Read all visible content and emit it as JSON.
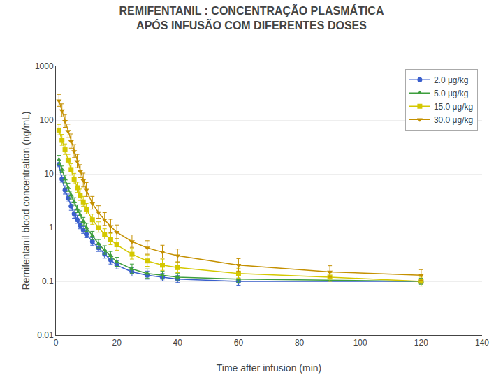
{
  "chart_data": {
    "type": "line",
    "title": "REMIFENTANIL : CONCENTRAÇÃO PLASMÁTICA",
    "subtitle": "APÓS INFUSÃO COM DIFERENTES DOSES",
    "x_label": "Time after infusion (min)",
    "y_label": "Remifentanil blood concentration (ng/mL)",
    "log": "y",
    "grid": true,
    "legend": "upper right",
    "xlim": [
      0,
      140
    ],
    "xticks": [
      0,
      20,
      40,
      60,
      80,
      100,
      120,
      140
    ],
    "ylim": [
      0.01,
      1000
    ],
    "yticks": [
      0.01,
      0.1,
      1,
      10,
      100,
      1000
    ],
    "series": [
      {
        "name": "2.0 μg/kg",
        "color": "#3a5fcd",
        "marker": "circle",
        "x": [
          1,
          2,
          3,
          4,
          5,
          6,
          7,
          8,
          9,
          10,
          12,
          14,
          16,
          18,
          20,
          25,
          30,
          35,
          40,
          60,
          120
        ],
        "values": [
          15,
          8,
          5,
          3.5,
          2.5,
          1.8,
          1.4,
          1.1,
          0.9,
          0.75,
          0.55,
          0.42,
          0.32,
          0.25,
          0.2,
          0.15,
          0.13,
          0.12,
          0.11,
          0.1,
          0.1
        ],
        "err_lo": [
          2,
          1,
          0.8,
          0.5,
          0.4,
          0.3,
          0.2,
          0.15,
          0.12,
          0.1,
          0.08,
          0.06,
          0.05,
          0.04,
          0.03,
          0.025,
          0.02,
          0.018,
          0.015,
          0.015,
          0.01
        ],
        "err_hi": [
          3,
          1.5,
          1,
          0.7,
          0.5,
          0.4,
          0.3,
          0.2,
          0.15,
          0.12,
          0.1,
          0.08,
          0.06,
          0.05,
          0.04,
          0.03,
          0.025,
          0.02,
          0.018,
          0.015,
          0.012
        ]
      },
      {
        "name": "5.0 μg/kg",
        "color": "#3d9e3d",
        "marker": "triangle-up",
        "x": [
          1,
          2,
          3,
          4,
          5,
          6,
          7,
          8,
          9,
          10,
          12,
          14,
          16,
          18,
          20,
          25,
          30,
          35,
          40,
          60,
          120
        ],
        "values": [
          18,
          12,
          8,
          5.5,
          4,
          3,
          2.2,
          1.7,
          1.3,
          1.0,
          0.7,
          0.5,
          0.38,
          0.3,
          0.23,
          0.17,
          0.14,
          0.13,
          0.12,
          0.11,
          0.1
        ],
        "err_lo": [
          3,
          1.5,
          1.2,
          0.8,
          0.6,
          0.4,
          0.3,
          0.25,
          0.2,
          0.15,
          0.1,
          0.08,
          0.06,
          0.05,
          0.04,
          0.03,
          0.025,
          0.02,
          0.018,
          0.015,
          0.012
        ],
        "err_hi": [
          4,
          2,
          1.5,
          1.2,
          0.8,
          0.6,
          0.45,
          0.35,
          0.25,
          0.2,
          0.15,
          0.1,
          0.08,
          0.06,
          0.05,
          0.04,
          0.03,
          0.025,
          0.02,
          0.018,
          0.014
        ]
      },
      {
        "name": "15.0 μg/kg",
        "color": "#d4c800",
        "marker": "square",
        "x": [
          1,
          2,
          3,
          4,
          5,
          6,
          7,
          8,
          9,
          10,
          12,
          14,
          16,
          18,
          20,
          25,
          30,
          35,
          40,
          60,
          90,
          120
        ],
        "values": [
          65,
          42,
          28,
          18,
          12,
          8,
          5.5,
          4,
          3,
          2.2,
          1.4,
          1.0,
          0.75,
          0.6,
          0.48,
          0.32,
          0.24,
          0.2,
          0.18,
          0.14,
          0.12,
          0.1
        ],
        "err_lo": [
          12,
          8,
          5,
          3.5,
          2.5,
          1.5,
          1,
          0.8,
          0.5,
          0.4,
          0.25,
          0.18,
          0.14,
          0.12,
          0.1,
          0.06,
          0.05,
          0.04,
          0.035,
          0.025,
          0.02,
          0.018
        ],
        "err_hi": [
          18,
          12,
          8,
          5,
          3.5,
          2.2,
          1.5,
          1.2,
          0.8,
          0.6,
          0.38,
          0.28,
          0.2,
          0.18,
          0.14,
          0.09,
          0.07,
          0.06,
          0.05,
          0.035,
          0.025,
          0.02
        ]
      },
      {
        "name": "30.0 μg/kg",
        "color": "#c49000",
        "marker": "triangle-down",
        "x": [
          1,
          2,
          3,
          4,
          5,
          6,
          7,
          8,
          9,
          10,
          12,
          14,
          16,
          18,
          20,
          25,
          30,
          35,
          40,
          60,
          90,
          120
        ],
        "values": [
          230,
          150,
          95,
          62,
          40,
          26,
          17,
          11,
          7.5,
          5,
          2.8,
          1.9,
          1.4,
          1.05,
          0.82,
          0.55,
          0.42,
          0.35,
          0.3,
          0.2,
          0.15,
          0.13
        ],
        "err_lo": [
          50,
          35,
          22,
          15,
          10,
          6,
          4,
          2.5,
          1.8,
          1.2,
          0.6,
          0.4,
          0.3,
          0.25,
          0.2,
          0.12,
          0.1,
          0.08,
          0.07,
          0.045,
          0.03,
          0.025
        ],
        "err_hi": [
          70,
          50,
          32,
          22,
          15,
          9,
          6,
          3.8,
          2.8,
          1.9,
          1,
          0.65,
          0.5,
          0.38,
          0.3,
          0.18,
          0.15,
          0.12,
          0.1,
          0.065,
          0.045,
          0.035
        ]
      }
    ]
  }
}
